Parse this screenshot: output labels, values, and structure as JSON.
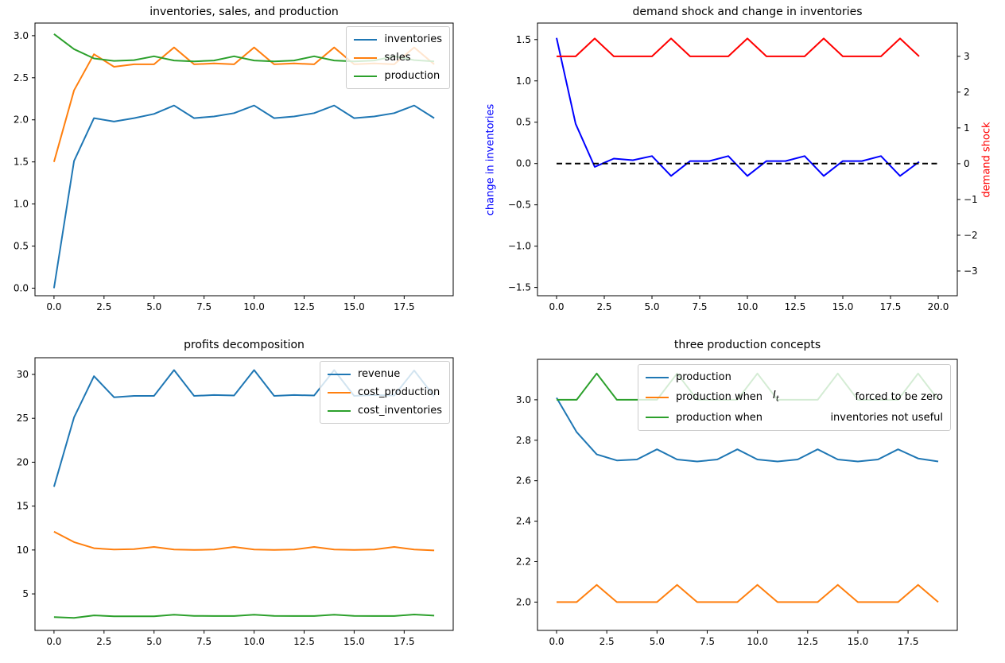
{
  "figure": {
    "background": "#ffffff",
    "kind": "matplotlib 2x2 line-plot figure"
  },
  "colors": {
    "mpl_blue": "#1f77b4",
    "mpl_orange": "#ff7f0e",
    "mpl_green": "#2ca02c",
    "pure_blue": "#0000ff",
    "pure_red": "#ff0000",
    "black": "#000000"
  },
  "chart_data": [
    {
      "type": "line",
      "title": "inventories, sales, and production",
      "x": [
        0,
        1,
        2,
        3,
        4,
        5,
        6,
        7,
        8,
        9,
        10,
        11,
        12,
        13,
        14,
        15,
        16,
        17,
        18,
        19
      ],
      "xlim": [
        -0.95,
        19.95
      ],
      "ylim": [
        -0.09,
        3.15
      ],
      "grid": false,
      "legend_position": "upper right",
      "xtick_values": [
        0,
        2.5,
        5,
        7.5,
        10,
        12.5,
        15,
        17.5
      ],
      "xtick_labels": [
        "0.0",
        "2.5",
        "5.0",
        "7.5",
        "10.0",
        "12.5",
        "15.0",
        "17.5"
      ],
      "ytick_values": [
        0,
        0.5,
        1,
        1.5,
        2,
        2.5,
        3
      ],
      "ytick_labels": [
        "0.0",
        "0.5",
        "1.0",
        "1.5",
        "2.0",
        "2.5",
        "3.0"
      ],
      "series": [
        {
          "name": "inventories",
          "color": "#1f77b4",
          "values": [
            0,
            1.51,
            2.02,
            1.98,
            2.02,
            2.07,
            2.17,
            2.02,
            2.04,
            2.08,
            2.17,
            2.02,
            2.04,
            2.08,
            2.17,
            2.02,
            2.04,
            2.08,
            2.17,
            2.02
          ]
        },
        {
          "name": "sales",
          "color": "#ff7f0e",
          "values": [
            1.5,
            2.35,
            2.78,
            2.63,
            2.66,
            2.66,
            2.86,
            2.66,
            2.67,
            2.66,
            2.86,
            2.66,
            2.67,
            2.66,
            2.86,
            2.66,
            2.67,
            2.66,
            2.86,
            2.66
          ]
        },
        {
          "name": "production",
          "color": "#2ca02c",
          "values": [
            3.02,
            2.84,
            2.73,
            2.7,
            2.71,
            2.755,
            2.705,
            2.695,
            2.705,
            2.755,
            2.705,
            2.695,
            2.705,
            2.755,
            2.705,
            2.695,
            2.705,
            2.755,
            2.71,
            2.695
          ]
        }
      ]
    },
    {
      "type": "line",
      "title": "demand shock and change in inventories",
      "ylabel_left": "change in inventories",
      "ylabel_left_color": "#0000ff",
      "ylabel_right": "demand shock",
      "ylabel_right_color": "#ff0000",
      "x": [
        0,
        1,
        2,
        3,
        4,
        5,
        6,
        7,
        8,
        9,
        10,
        11,
        12,
        13,
        14,
        15,
        16,
        17,
        18,
        19
      ],
      "xlim": [
        -1,
        21
      ],
      "ylim": [
        -1.6,
        1.7
      ],
      "ylim_right": [
        -3.69,
        3.93
      ],
      "grid": false,
      "xtick_values": [
        0,
        2.5,
        5,
        7.5,
        10,
        12.5,
        15,
        17.5,
        20
      ],
      "xtick_labels": [
        "0.0",
        "2.5",
        "5.0",
        "7.5",
        "10.0",
        "12.5",
        "15.0",
        "17.5",
        "20.0"
      ],
      "ytick_values": [
        -1.5,
        -1,
        -0.5,
        0,
        0.5,
        1,
        1.5
      ],
      "ytick_labels": [
        "−1.5",
        "−1.0",
        "−0.5",
        "0.0",
        "0.5",
        "1.0",
        "1.5"
      ],
      "ytick_right_values": [
        -3,
        -2,
        -1,
        0,
        1,
        2,
        3
      ],
      "ytick_right_labels": [
        "−3",
        "−2",
        "−1",
        "0",
        "1",
        "2",
        "3"
      ],
      "series": [
        {
          "name": "change in inventories",
          "color": "#0000ff",
          "axis": "left",
          "values": [
            1.52,
            0.48,
            -0.04,
            0.06,
            0.04,
            0.09,
            -0.15,
            0.03,
            0.03,
            0.09,
            -0.15,
            0.03,
            0.03,
            0.09,
            -0.15,
            0.03,
            0.03,
            0.09,
            -0.15,
            0.02
          ]
        },
        {
          "name": "demand shock",
          "color": "#ff0000",
          "axis": "right",
          "values": [
            3,
            3,
            3.5,
            3,
            3,
            3,
            3.5,
            3,
            3,
            3,
            3.5,
            3,
            3,
            3,
            3.5,
            3,
            3,
            3,
            3.5,
            3
          ]
        },
        {
          "name": "zero line",
          "color": "#000000",
          "axis": "left",
          "dash": true,
          "x": [
            0,
            20
          ],
          "values": [
            0,
            0
          ]
        }
      ]
    },
    {
      "type": "line",
      "title": "profits decomposition",
      "x": [
        0,
        1,
        2,
        3,
        4,
        5,
        6,
        7,
        8,
        9,
        10,
        11,
        12,
        13,
        14,
        15,
        16,
        17,
        18,
        19
      ],
      "xlim": [
        -0.95,
        19.95
      ],
      "ylim": [
        0.84,
        31.9
      ],
      "grid": false,
      "legend_position": "upper right",
      "xtick_values": [
        0,
        2.5,
        5,
        7.5,
        10,
        12.5,
        15,
        17.5
      ],
      "xtick_labels": [
        "0.0",
        "2.5",
        "5.0",
        "7.5",
        "10.0",
        "12.5",
        "15.0",
        "17.5"
      ],
      "ytick_values": [
        5,
        10,
        15,
        20,
        25,
        30
      ],
      "ytick_labels": [
        "5",
        "10",
        "15",
        "20",
        "25",
        "30"
      ],
      "series": [
        {
          "name": "revenue",
          "color": "#1f77b4",
          "values": [
            17.2,
            25.1,
            29.8,
            27.4,
            27.55,
            27.55,
            30.5,
            27.55,
            27.65,
            27.6,
            30.5,
            27.55,
            27.65,
            27.6,
            30.5,
            27.55,
            27.65,
            27.6,
            30.45,
            27.5
          ]
        },
        {
          "name": "cost_production",
          "color": "#ff7f0e",
          "values": [
            12.1,
            10.9,
            10.2,
            10.05,
            10.1,
            10.35,
            10.05,
            10.0,
            10.05,
            10.35,
            10.05,
            10.0,
            10.05,
            10.35,
            10.05,
            10.0,
            10.05,
            10.35,
            10.05,
            9.95
          ]
        },
        {
          "name": "cost_inventories",
          "color": "#2ca02c",
          "values": [
            2.35,
            2.27,
            2.55,
            2.45,
            2.45,
            2.45,
            2.62,
            2.5,
            2.48,
            2.48,
            2.62,
            2.5,
            2.48,
            2.48,
            2.62,
            2.5,
            2.48,
            2.48,
            2.65,
            2.52
          ]
        }
      ]
    },
    {
      "type": "line",
      "title": "three production concepts",
      "x": [
        0,
        1,
        2,
        3,
        4,
        5,
        6,
        7,
        8,
        9,
        10,
        11,
        12,
        13,
        14,
        15,
        16,
        17,
        18,
        19
      ],
      "xlim": [
        -0.95,
        19.95
      ],
      "ylim": [
        1.86,
        3.2
      ],
      "grid": false,
      "legend_position": "upper right",
      "xtick_values": [
        0,
        2.5,
        5,
        7.5,
        10,
        12.5,
        15,
        17.5
      ],
      "xtick_labels": [
        "0.0",
        "2.5",
        "5.0",
        "7.5",
        "10.0",
        "12.5",
        "15.0",
        "17.5"
      ],
      "ytick_values": [
        2.0,
        2.2,
        2.4,
        2.6,
        2.8,
        3.0
      ],
      "ytick_labels": [
        "2.0",
        "2.2",
        "2.4",
        "2.6",
        "2.8",
        "3.0"
      ],
      "series": [
        {
          "name": "production",
          "color": "#1f77b4",
          "values": [
            3.01,
            2.84,
            2.73,
            2.7,
            2.705,
            2.755,
            2.705,
            2.695,
            2.705,
            2.755,
            2.705,
            2.695,
            2.705,
            2.755,
            2.705,
            2.695,
            2.705,
            2.755,
            2.71,
            2.695
          ]
        },
        {
          "name": "production when I_t forced to be zero",
          "color": "#ff7f0e",
          "values": [
            2,
            2,
            2.085,
            2,
            2,
            2,
            2.085,
            2,
            2,
            2,
            2.085,
            2,
            2,
            2,
            2.085,
            2,
            2,
            2,
            2.085,
            2
          ]
        },
        {
          "name": "production when inventories not useful",
          "color": "#2ca02c",
          "values": [
            3,
            3,
            3.13,
            3,
            3,
            3,
            3.13,
            3,
            3,
            3,
            3.13,
            3,
            3,
            3,
            3.13,
            3,
            3,
            3,
            3.13,
            3
          ]
        }
      ],
      "legend": [
        {
          "label": "production"
        },
        {
          "label": "production when",
          "math_var": "I",
          "math_sub": "t",
          "label_right": "forced to be zero"
        },
        {
          "label": "production when",
          "label_right": "inventories not useful"
        }
      ]
    }
  ]
}
